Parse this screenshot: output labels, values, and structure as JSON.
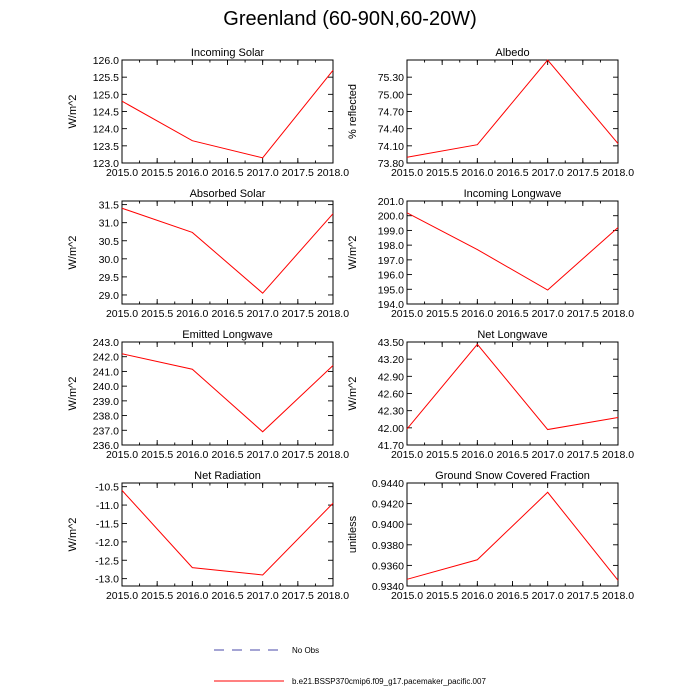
{
  "title": "Greenland (60-90N,60-20W)",
  "colors": {
    "series": "#ff0000",
    "obs": "#4a4aa8",
    "axis": "#000000"
  },
  "legend": {
    "obs_label": "No Obs",
    "series_label": "b.e21.BSSP370cmip6.f09_g17.pacemaker_pacific.007"
  },
  "chart_data": [
    {
      "type": "line",
      "title": "Incoming Solar",
      "ylabel": "W/m^2",
      "xlabel": "",
      "x": [
        2015.0,
        2016.0,
        2017.0,
        2018.0
      ],
      "xlim": [
        2015.0,
        2018.0
      ],
      "xticks": [
        2015.0,
        2015.5,
        2016.0,
        2016.5,
        2017.0,
        2017.5,
        2018.0
      ],
      "xtick_labels": [
        "2015.0",
        "2015.5",
        "2016.0",
        "2016.5",
        "2017.0",
        "2017.5",
        "2018.0"
      ],
      "ylim": [
        123.0,
        126.0
      ],
      "yticks": [
        123.0,
        123.5,
        124.0,
        124.5,
        125.0,
        125.5,
        126.0
      ],
      "ytick_labels": [
        "123.0",
        "123.5",
        "124.0",
        "124.5",
        "125.0",
        "125.5",
        "126.0"
      ],
      "series": [
        {
          "name": "b.e21.BSSP370cmip6.f09_g17.pacemaker_pacific.007",
          "values": [
            124.8,
            123.65,
            123.15,
            125.7
          ]
        }
      ]
    },
    {
      "type": "line",
      "title": "Albedo",
      "ylabel": "% reflected",
      "xlabel": "",
      "x": [
        2015.0,
        2016.0,
        2017.0,
        2018.0
      ],
      "xlim": [
        2015.0,
        2018.0
      ],
      "xticks": [
        2015.0,
        2015.5,
        2016.0,
        2016.5,
        2017.0,
        2017.5,
        2018.0
      ],
      "xtick_labels": [
        "2015.0",
        "2015.5",
        "2016.0",
        "2016.5",
        "2017.0",
        "2017.5",
        "2018.0"
      ],
      "ylim": [
        73.8,
        75.6
      ],
      "yticks": [
        73.8,
        74.1,
        74.4,
        74.7,
        75.0,
        75.3
      ],
      "ytick_labels": [
        "73.80",
        "74.10",
        "74.40",
        "74.70",
        "75.00",
        "75.30"
      ],
      "series": [
        {
          "name": "b.e21.BSSP370cmip6.f09_g17.pacemaker_pacific.007",
          "values": [
            73.9,
            74.12,
            75.6,
            74.14
          ]
        }
      ]
    },
    {
      "type": "line",
      "title": "Absorbed Solar",
      "ylabel": "W/m^2",
      "xlabel": "",
      "x": [
        2015.0,
        2016.0,
        2017.0,
        2018.0
      ],
      "xlim": [
        2015.0,
        2018.0
      ],
      "xticks": [
        2015.0,
        2015.5,
        2016.0,
        2016.5,
        2017.0,
        2017.5,
        2018.0
      ],
      "xtick_labels": [
        "2015.0",
        "2015.5",
        "2016.0",
        "2016.5",
        "2017.0",
        "2017.5",
        "2018.0"
      ],
      "ylim": [
        28.75,
        31.6
      ],
      "yticks": [
        29.0,
        29.5,
        30.0,
        30.5,
        31.0,
        31.5
      ],
      "ytick_labels": [
        "29.0",
        "29.5",
        "30.0",
        "30.5",
        "31.0",
        "31.5"
      ],
      "series": [
        {
          "name": "b.e21.BSSP370cmip6.f09_g17.pacemaker_pacific.007",
          "values": [
            31.4,
            30.73,
            29.05,
            31.25
          ]
        }
      ]
    },
    {
      "type": "line",
      "title": "Incoming Longwave",
      "ylabel": "W/m^2",
      "xlabel": "",
      "x": [
        2015.0,
        2016.0,
        2017.0,
        2018.0
      ],
      "xlim": [
        2015.0,
        2018.0
      ],
      "xticks": [
        2015.0,
        2015.5,
        2016.0,
        2016.5,
        2017.0,
        2017.5,
        2018.0
      ],
      "xtick_labels": [
        "2015.0",
        "2015.5",
        "2016.0",
        "2016.5",
        "2017.0",
        "2017.5",
        "2018.0"
      ],
      "ylim": [
        194.0,
        201.0
      ],
      "yticks": [
        194.0,
        195.0,
        196.0,
        197.0,
        198.0,
        199.0,
        200.0,
        201.0
      ],
      "ytick_labels": [
        "194.0",
        "195.0",
        "196.0",
        "197.0",
        "198.0",
        "199.0",
        "200.0",
        "201.0"
      ],
      "series": [
        {
          "name": "b.e21.BSSP370cmip6.f09_g17.pacemaker_pacific.007",
          "values": [
            200.2,
            197.7,
            194.95,
            199.2
          ]
        }
      ]
    },
    {
      "type": "line",
      "title": "Emitted Longwave",
      "ylabel": "W/m^2",
      "xlabel": "",
      "x": [
        2015.0,
        2016.0,
        2017.0,
        2018.0
      ],
      "xlim": [
        2015.0,
        2018.0
      ],
      "xticks": [
        2015.0,
        2015.5,
        2016.0,
        2016.5,
        2017.0,
        2017.5,
        2018.0
      ],
      "xtick_labels": [
        "2015.0",
        "2015.5",
        "2016.0",
        "2016.5",
        "2017.0",
        "2017.5",
        "2018.0"
      ],
      "ylim": [
        236.0,
        243.0
      ],
      "yticks": [
        236.0,
        237.0,
        238.0,
        239.0,
        240.0,
        241.0,
        242.0,
        243.0
      ],
      "ytick_labels": [
        "236.0",
        "237.0",
        "238.0",
        "239.0",
        "240.0",
        "241.0",
        "242.0",
        "243.0"
      ],
      "series": [
        {
          "name": "b.e21.BSSP370cmip6.f09_g17.pacemaker_pacific.007",
          "values": [
            242.2,
            241.15,
            236.9,
            241.4
          ]
        }
      ]
    },
    {
      "type": "line",
      "title": "Net Longwave",
      "ylabel": "W/m^2",
      "xlabel": "",
      "x": [
        2015.0,
        2016.0,
        2017.0,
        2018.0
      ],
      "xlim": [
        2015.0,
        2018.0
      ],
      "xticks": [
        2015.0,
        2015.5,
        2016.0,
        2016.5,
        2017.0,
        2017.5,
        2018.0
      ],
      "xtick_labels": [
        "2015.0",
        "2015.5",
        "2016.0",
        "2016.5",
        "2017.0",
        "2017.5",
        "2018.0"
      ],
      "ylim": [
        41.7,
        43.5
      ],
      "yticks": [
        41.7,
        42.0,
        42.3,
        42.6,
        42.9,
        43.2,
        43.5
      ],
      "ytick_labels": [
        "41.70",
        "42.00",
        "42.30",
        "42.60",
        "42.90",
        "43.20",
        "43.50"
      ],
      "series": [
        {
          "name": "b.e21.BSSP370cmip6.f09_g17.pacemaker_pacific.007",
          "values": [
            41.98,
            43.46,
            41.97,
            42.18
          ]
        }
      ]
    },
    {
      "type": "line",
      "title": "Net Radiation",
      "ylabel": "W/m^2",
      "xlabel": "",
      "x": [
        2015.0,
        2016.0,
        2017.0,
        2018.0
      ],
      "xlim": [
        2015.0,
        2018.0
      ],
      "xticks": [
        2015.0,
        2015.5,
        2016.0,
        2016.5,
        2017.0,
        2017.5,
        2018.0
      ],
      "xtick_labels": [
        "2015.0",
        "2015.5",
        "2016.0",
        "2016.5",
        "2017.0",
        "2017.5",
        "2018.0"
      ],
      "ylim": [
        -13.2,
        -10.4
      ],
      "yticks": [
        -13.0,
        -12.5,
        -12.0,
        -11.5,
        -11.0,
        -10.5
      ],
      "ytick_labels": [
        "-13.0",
        "-12.5",
        "-12.0",
        "-11.5",
        "-11.0",
        "-10.5"
      ],
      "series": [
        {
          "name": "b.e21.BSSP370cmip6.f09_g17.pacemaker_pacific.007",
          "values": [
            -10.6,
            -12.7,
            -12.9,
            -10.95
          ]
        }
      ]
    },
    {
      "type": "line",
      "title": "Ground Snow Covered Fraction",
      "ylabel": "unitless",
      "xlabel": "",
      "x": [
        2015.0,
        2016.0,
        2017.0,
        2018.0
      ],
      "xlim": [
        2015.0,
        2018.0
      ],
      "xticks": [
        2015.0,
        2015.5,
        2016.0,
        2016.5,
        2017.0,
        2017.5,
        2018.0
      ],
      "xtick_labels": [
        "2015.0",
        "2015.5",
        "2016.0",
        "2016.5",
        "2017.0",
        "2017.5",
        "2018.0"
      ],
      "ylim": [
        0.934,
        0.944
      ],
      "yticks": [
        0.934,
        0.936,
        0.938,
        0.94,
        0.942,
        0.944
      ],
      "ytick_labels": [
        "0.9340",
        "0.9360",
        "0.9380",
        "0.9400",
        "0.9420",
        "0.9440"
      ],
      "series": [
        {
          "name": "b.e21.BSSP370cmip6.f09_g17.pacemaker_pacific.007",
          "values": [
            0.93465,
            0.93655,
            0.9431,
            0.93455
          ]
        }
      ]
    }
  ]
}
